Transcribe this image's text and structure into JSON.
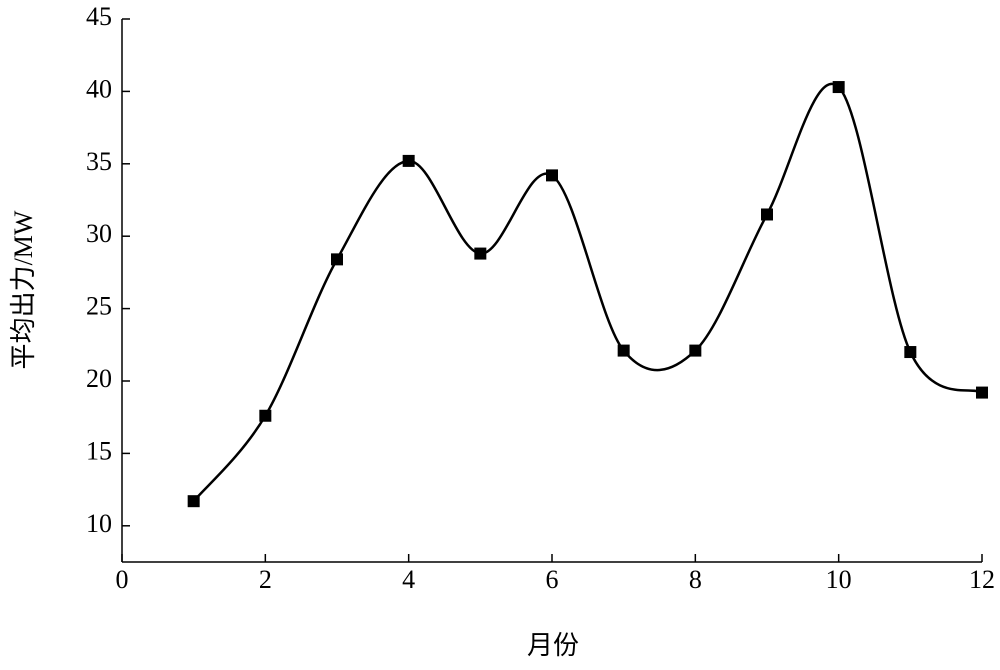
{
  "chart_data": {
    "type": "line",
    "smooth": true,
    "x_label": "月份",
    "y_label": "平均出力/MW",
    "x": [
      1,
      2,
      3,
      4,
      5,
      6,
      7,
      8,
      9,
      10,
      11,
      12
    ],
    "series": [
      {
        "color": "#000000",
        "marker": "square",
        "values": [
          11.7,
          17.6,
          28.4,
          35.2,
          28.8,
          34.2,
          22.1,
          22.1,
          31.5,
          40.3,
          22.0,
          19.2
        ]
      }
    ],
    "xlim": [
      0,
      12
    ],
    "xticks": [
      0,
      2,
      4,
      6,
      8,
      10,
      12
    ],
    "ylim": [
      7.5,
      45
    ],
    "yticks": [
      10,
      15,
      20,
      25,
      30,
      35,
      40,
      45
    ]
  }
}
